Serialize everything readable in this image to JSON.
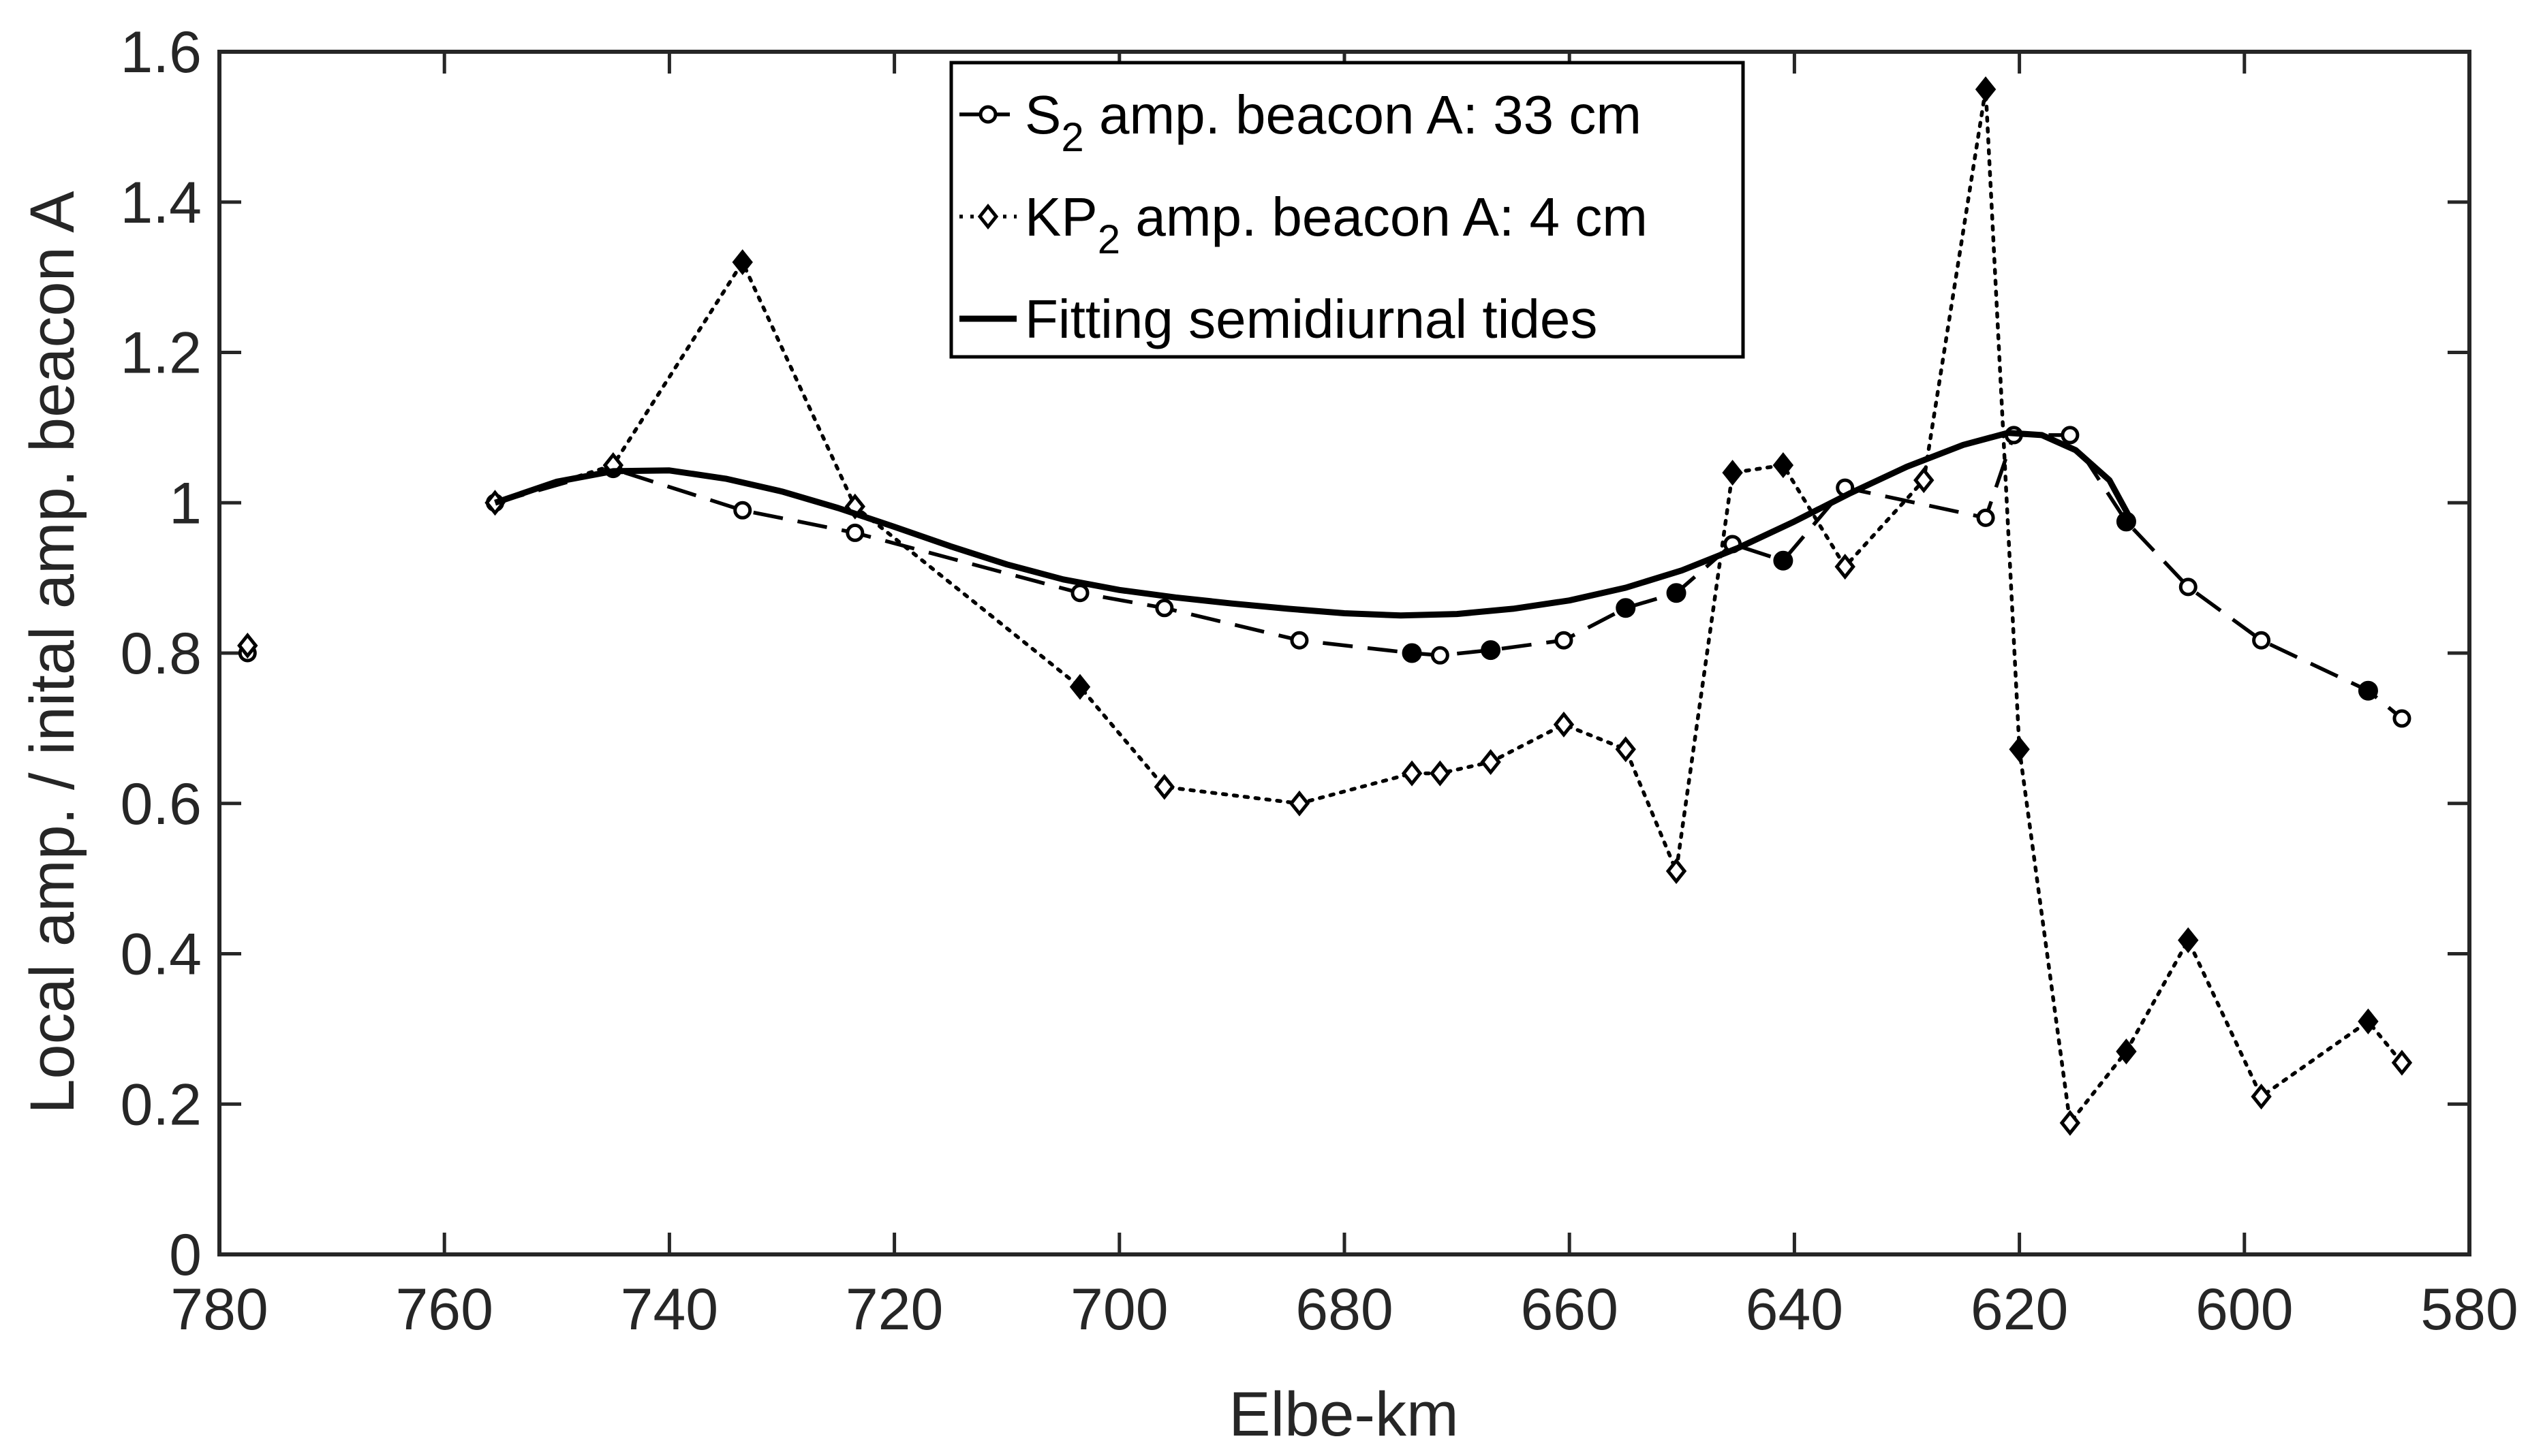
{
  "chart_data": {
    "type": "line",
    "title": "",
    "xlabel": "Elbe-km",
    "ylabel": "Local amp. / inital amp. beacon A",
    "xlim": [
      780,
      580
    ],
    "ylim": [
      0,
      1.6
    ],
    "x_reversed": true,
    "xticks": [
      780,
      760,
      740,
      720,
      700,
      680,
      660,
      640,
      620,
      600,
      580
    ],
    "xtick_labels": [
      "780",
      "760",
      "740",
      "720",
      "700",
      "680",
      "660",
      "640",
      "620",
      "600",
      "580"
    ],
    "yticks": [
      0,
      0.2,
      0.4,
      0.6,
      0.8,
      1.0,
      1.2,
      1.4,
      1.6
    ],
    "ytick_labels": [
      "0",
      "0.2",
      "0.4",
      "0.6",
      "0.8",
      "1",
      "1.2",
      "1.4",
      "1.6"
    ],
    "grid": false,
    "legend_position": "top-center",
    "series": [
      {
        "name": "S2 amp. beacon A: 33 cm",
        "legend_main": "S",
        "legend_sub": "2",
        "legend_rest": " amp. beacon A: 33 cm",
        "style": "dashed",
        "marker": "circle",
        "color": "#000000",
        "points": [
          [
            777.5,
            0.8
          ],
          [
            755.5,
            1.0
          ],
          [
            745,
            1.045
          ],
          [
            733.5,
            0.99
          ],
          [
            723.5,
            0.96
          ],
          [
            703.5,
            0.88
          ],
          [
            696,
            0.86
          ],
          [
            684,
            0.817
          ],
          [
            674,
            0.8
          ],
          [
            671.5,
            0.797
          ],
          [
            667,
            0.804
          ],
          [
            660.5,
            0.817
          ],
          [
            655,
            0.86
          ],
          [
            650.5,
            0.88
          ],
          [
            645.5,
            0.945
          ],
          [
            641,
            0.923
          ],
          [
            635.5,
            1.02
          ],
          [
            623,
            0.98
          ],
          [
            620.5,
            1.09
          ],
          [
            615.5,
            1.09
          ],
          [
            610.5,
            0.975
          ],
          [
            605,
            0.888
          ],
          [
            598.5,
            0.817
          ],
          [
            589,
            0.75
          ],
          [
            586,
            0.713
          ]
        ],
        "filled_markers": [
          674,
          667,
          655,
          650.5,
          641,
          610.5,
          589
        ]
      },
      {
        "name": "KP2 amp. beacon A: 4 cm",
        "legend_main": "KP",
        "legend_sub": "2",
        "legend_rest": " amp. beacon A: 4 cm",
        "style": "dotted",
        "marker": "diamond",
        "color": "#000000",
        "points": [
          [
            777.5,
            0.81
          ],
          [
            755.5,
            1.0
          ],
          [
            745,
            1.05
          ],
          [
            733.5,
            1.32
          ],
          [
            723.5,
            0.995
          ],
          [
            703.5,
            0.755
          ],
          [
            696,
            0.622
          ],
          [
            684,
            0.6
          ],
          [
            674,
            0.64
          ],
          [
            671.5,
            0.64
          ],
          [
            667,
            0.655
          ],
          [
            660.5,
            0.705
          ],
          [
            655,
            0.672
          ],
          [
            650.5,
            0.51
          ],
          [
            645.5,
            1.04
          ],
          [
            641,
            1.05
          ],
          [
            635.5,
            0.915
          ],
          [
            628.5,
            1.03
          ],
          [
            623,
            1.55
          ],
          [
            620,
            0.672
          ],
          [
            615.5,
            0.175
          ],
          [
            610.5,
            0.27
          ],
          [
            605,
            0.418
          ],
          [
            598.5,
            0.21
          ],
          [
            589,
            0.31
          ],
          [
            586,
            0.255
          ]
        ],
        "filled_markers": [
          733.5,
          703.5,
          645.5,
          641,
          623,
          620,
          610.5,
          605,
          589
        ]
      },
      {
        "name": "Fitting semidiurnal tides",
        "legend_main": "Fitting semidiurnal tides",
        "legend_sub": "",
        "legend_rest": "",
        "style": "solid",
        "marker": "none",
        "color": "#000000",
        "points": [
          [
            755.5,
            1.0
          ],
          [
            750,
            1.028
          ],
          [
            745,
            1.042
          ],
          [
            740,
            1.043
          ],
          [
            735,
            1.032
          ],
          [
            730,
            1.015
          ],
          [
            725,
            0.993
          ],
          [
            720,
            0.968
          ],
          [
            715,
            0.942
          ],
          [
            710,
            0.918
          ],
          [
            705,
            0.898
          ],
          [
            700,
            0.884
          ],
          [
            695,
            0.874
          ],
          [
            690,
            0.866
          ],
          [
            685,
            0.859
          ],
          [
            680,
            0.853
          ],
          [
            675,
            0.85
          ],
          [
            670,
            0.852
          ],
          [
            665,
            0.859
          ],
          [
            660,
            0.87
          ],
          [
            655,
            0.887
          ],
          [
            650,
            0.91
          ],
          [
            645,
            0.94
          ],
          [
            640,
            0.975
          ],
          [
            635,
            1.013
          ],
          [
            630,
            1.048
          ],
          [
            625,
            1.077
          ],
          [
            621,
            1.093
          ],
          [
            618,
            1.09
          ],
          [
            615,
            1.07
          ],
          [
            612,
            1.03
          ],
          [
            610,
            0.975
          ]
        ]
      }
    ]
  }
}
